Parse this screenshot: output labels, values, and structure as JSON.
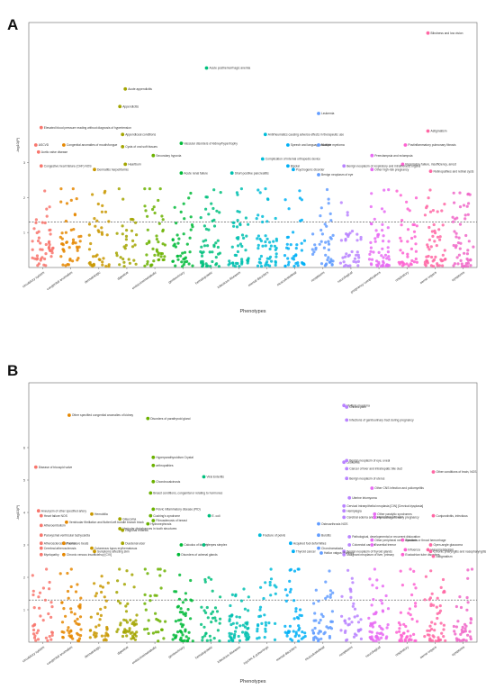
{
  "panels": [
    {
      "letter": "A"
    },
    {
      "letter": "B"
    }
  ],
  "chart_data": [
    {
      "type": "scatter",
      "ylabel": "-log10(P)",
      "xlabel": "Phenotypes",
      "ylim": [
        0,
        7
      ],
      "yticks": [
        1,
        2,
        3
      ],
      "threshold": 1.3,
      "grid": false,
      "categories": [
        "circulatory system",
        "congenital anomalies",
        "dermatologic",
        "digestive",
        "endocrine/metabolic",
        "genitourinary",
        "hematopoietic",
        "infectious diseases",
        "mental disorders",
        "musculoskeletal",
        "neoplasms",
        "neurological",
        "pregnancy complications",
        "respiratory",
        "sense organs",
        "symptoms"
      ],
      "colors": [
        "#f8766d",
        "#e58700",
        "#c99800",
        "#a3a500",
        "#6bb100",
        "#00ba38",
        "#00bf7d",
        "#00c0af",
        "#00bcd8",
        "#00b0f6",
        "#619cff",
        "#b983ff",
        "#e76bf3",
        "#fd61d1",
        "#ff67a4",
        "#f066c8"
      ],
      "points": [
        {
          "label": "Blindness and low vision",
          "cat": 14,
          "y": 6.7
        },
        {
          "label": "Acute posthemorrhagic anemia",
          "cat": 6,
          "y": 5.7
        },
        {
          "label": "Acute appendicitis",
          "cat": 3,
          "y": 5.1
        },
        {
          "label": "Appendicitis",
          "cat": 3,
          "y": 4.6
        },
        {
          "label": "Leukemia",
          "cat": 10,
          "y": 4.4
        },
        {
          "label": "Elevated blood pressure reading without diagnosis of hypertension",
          "cat": 0,
          "y": 4.0
        },
        {
          "label": "Astigmatism",
          "cat": 14,
          "y": 3.9
        },
        {
          "label": "Appendiceal conditions",
          "cat": 3,
          "y": 3.8
        },
        {
          "label": "Antirheumatics causing adverse effects in therapeutic use",
          "cat": 8,
          "y": 3.8
        },
        {
          "label": "Congenital anomalies of mouth/tongue",
          "cat": 1,
          "y": 3.5
        },
        {
          "label": "Cysts of oral soft tissues",
          "cat": 3,
          "y": 3.45
        },
        {
          "label": "Vascular disorders of kidney/hypertrophy",
          "cat": 5,
          "y": 3.55
        },
        {
          "label": "Speech and language disorder",
          "cat": 9,
          "y": 3.5
        },
        {
          "label": "Multiple myeloma",
          "cat": 10,
          "y": 3.5
        },
        {
          "label": "Postinflammatory pulmonary fibrosis",
          "cat": 13,
          "y": 3.5
        },
        {
          "label": "ASCVD",
          "cat": 0,
          "y": 3.5
        },
        {
          "label": "Aortic valve disease",
          "cat": 0,
          "y": 3.3
        },
        {
          "label": "Secondary hypoxia",
          "cat": 4,
          "y": 3.2
        },
        {
          "label": "Preeclampsia and eclampsia",
          "cat": 12,
          "y": 3.2
        },
        {
          "label": "Complication of internal orthopedic device",
          "cat": 8,
          "y": 3.1
        },
        {
          "label": "Heartburn",
          "cat": 3,
          "y": 2.95
        },
        {
          "label": "Bipolar",
          "cat": 9,
          "y": 2.9
        },
        {
          "label": "Respiratory failure, insufficiency, arrest",
          "cat": 13,
          "y": 2.95
        },
        {
          "label": "Congestive heart failure (CHF) NOS",
          "cat": 0,
          "y": 2.9
        },
        {
          "label": "Benign neoplasm of respiratory and intrathoracic organs",
          "cat": 11,
          "y": 2.9
        },
        {
          "label": "Dermatitis herpetiformis",
          "cat": 2,
          "y": 2.8
        },
        {
          "label": "Psychogenic disorder",
          "cat": 9,
          "y": 2.8
        },
        {
          "label": "Other high-risk pregnancy",
          "cat": 12,
          "y": 2.8
        },
        {
          "label": "Retinopathies and retinal cysts",
          "cat": 14,
          "y": 2.75
        },
        {
          "label": "Acute renal failure",
          "cat": 5,
          "y": 2.7
        },
        {
          "label": "Short-positive pancreatitis",
          "cat": 7,
          "y": 2.7
        },
        {
          "label": "Benign neoplasm of eye",
          "cat": 10,
          "y": 2.65
        }
      ]
    },
    {
      "type": "scatter",
      "ylabel": "-log10(P)",
      "xlabel": "Phenotypes",
      "ylim": [
        0,
        8
      ],
      "yticks": [
        1,
        2,
        3,
        4,
        5,
        6
      ],
      "threshold": 1.3,
      "grid": false,
      "categories": [
        "circulatory system",
        "congenital anomalies",
        "dermatologic",
        "digestive",
        "endocrine/metabolic",
        "genitourinary",
        "hematopoietic",
        "infectious diseases",
        "injuries & poisonings",
        "mental disorders",
        "musculoskeletal",
        "neoplasms",
        "neurological",
        "respiratory",
        "sense organs",
        "symptoms"
      ],
      "colors": [
        "#f8766d",
        "#e58700",
        "#c99800",
        "#a3a500",
        "#6bb100",
        "#00ba38",
        "#00bf7d",
        "#00c0af",
        "#00bcd8",
        "#00b0f6",
        "#619cff",
        "#b983ff",
        "#e76bf3",
        "#fd61d1",
        "#ff67a4",
        "#f066c8"
      ],
      "points": [
        {
          "label": "Multiple myeloma",
          "cat": 11,
          "y": 7.3
        },
        {
          "label": "Chronic pain",
          "cat": 11,
          "y": 7.25
        },
        {
          "label": "Other specified congenital anomalies of kidney",
          "cat": 1,
          "y": 7.0
        },
        {
          "label": "Disorders of parathyroid gland",
          "cat": 4,
          "y": 6.9
        },
        {
          "label": "Infections of genitourinary tract during pregnancy",
          "cat": 11,
          "y": 6.85
        },
        {
          "label": "Hyperparathyroidism Crystal",
          "cat": 4,
          "y": 5.7
        },
        {
          "label": "Leukemia",
          "cat": 11,
          "y": 5.55
        },
        {
          "label": "Benign neoplasm of eye, uveal",
          "cat": 11,
          "y": 5.6
        },
        {
          "label": "arthropathies",
          "cat": 4,
          "y": 5.45
        },
        {
          "label": "Disease of tricuspid valve",
          "cat": 0,
          "y": 5.4
        },
        {
          "label": "Cancer of liver and intrahepatic bile duct",
          "cat": 11,
          "y": 5.35
        },
        {
          "label": "Other conditions of brain, NOS",
          "cat": 14,
          "y": 5.25
        },
        {
          "label": "Viral Enteritis",
          "cat": 6,
          "y": 5.1
        },
        {
          "label": "Benign neoplasm of uterus",
          "cat": 11,
          "y": 5.05
        },
        {
          "label": "Chondrocalcinosis",
          "cat": 4,
          "y": 4.95
        },
        {
          "label": "Other CNS infection and poliomyelitis",
          "cat": 12,
          "y": 4.75
        },
        {
          "label": "Breast conditions, congenital or relating to hormones",
          "cat": 4,
          "y": 4.6
        },
        {
          "label": "Uterine leiomyoma",
          "cat": 11,
          "y": 4.45
        },
        {
          "label": "Cervical intraepithelial neoplasia [CIN] [Cervical dysplasia]",
          "cat": 11,
          "y": 4.2
        },
        {
          "label": "Aneurysm of other specified artery",
          "cat": 0,
          "y": 4.05
        },
        {
          "label": "Pelvic inflammatory disease (PID)",
          "cat": 4,
          "y": 4.1
        },
        {
          "label": "Hemiplegia",
          "cat": 11,
          "y": 4.05
        },
        {
          "label": "Other paralytic syndromes",
          "cat": 12,
          "y": 3.95
        },
        {
          "label": "Heart failure NOS",
          "cat": 0,
          "y": 3.9
        },
        {
          "label": "Hemobilia",
          "cat": 2,
          "y": 3.95
        },
        {
          "label": "Cushing's syndrome",
          "cat": 4,
          "y": 3.9
        },
        {
          "label": "E. coli",
          "cat": 6,
          "y": 3.9
        },
        {
          "label": "Cerebral edema and compression of brain",
          "cat": 11,
          "y": 3.85
        },
        {
          "label": "Hemorrhage in early pregnancy",
          "cat": 12,
          "y": 3.85
        },
        {
          "label": "Conjunctivitis, infectious",
          "cat": 14,
          "y": 3.9
        },
        {
          "label": "Glaucoma",
          "cat": 3,
          "y": 3.8
        },
        {
          "label": "Ventricular fibrillation and flutter/Left bundle branch block",
          "cat": 1,
          "y": 3.7
        },
        {
          "label": "Fibroadenosis of breast",
          "cat": 4,
          "y": 3.75
        },
        {
          "label": "Hydronephrosis",
          "cat": 4,
          "y": 3.65
        },
        {
          "label": "Osteoarthrosis NOS",
          "cat": 10,
          "y": 3.65
        },
        {
          "label": "Atheroembolism",
          "cat": 0,
          "y": 3.6
        },
        {
          "label": "Vesicular disturbances in tooth structures",
          "cat": 3,
          "y": 3.5
        },
        {
          "label": "Regional enteritis",
          "cat": 3,
          "y": 3.45
        },
        {
          "label": "Paroxysmal ventricular tachycardia",
          "cat": 0,
          "y": 3.3
        },
        {
          "label": "Fracture of pelvis",
          "cat": 8,
          "y": 3.3
        },
        {
          "label": "Bursitis",
          "cat": 10,
          "y": 3.3
        },
        {
          "label": "Pathological, developmental or recurrent dislocation",
          "cat": 11,
          "y": 3.25
        },
        {
          "label": "Other peripheral nerve disorders",
          "cat": 12,
          "y": 3.15
        },
        {
          "label": "Epistaxis or throat hemorrhage",
          "cat": 13,
          "y": 3.15
        },
        {
          "label": "Atherosclerosis of aorta",
          "cat": 0,
          "y": 3.05
        },
        {
          "label": "Premature beats",
          "cat": 1,
          "y": 3.05
        },
        {
          "label": "Duodenal ulcer",
          "cat": 3,
          "y": 3.05
        },
        {
          "label": "Calculus of kidney",
          "cat": 5,
          "y": 3.0
        },
        {
          "label": "Herpes simplex",
          "cat": 6,
          "y": 3.0
        },
        {
          "label": "Acquired foot deformities",
          "cat": 9,
          "y": 3.05
        },
        {
          "label": "Colorectal cancer",
          "cat": 11,
          "y": 3.0
        },
        {
          "label": "Essential tremor",
          "cat": 12,
          "y": 3.0
        },
        {
          "label": "Open-angle glaucoma",
          "cat": 14,
          "y": 3.0
        },
        {
          "label": "Cerebral atherosclerosis",
          "cat": 0,
          "y": 2.9
        },
        {
          "label": "Cutaneous lupus erythematosus",
          "cat": 2,
          "y": 2.9
        },
        {
          "label": "Chondromalacia",
          "cat": 10,
          "y": 2.9
        },
        {
          "label": "Influenza",
          "cat": 13,
          "y": 2.85
        },
        {
          "label": "Hypermetabolism",
          "cat": 14,
          "y": 2.85
        },
        {
          "label": "Symptoms affecting skin",
          "cat": 2,
          "y": 2.8
        },
        {
          "label": "Thyroid cancer",
          "cat": 9,
          "y": 2.8
        },
        {
          "label": "Benign neoplasm of thyroid glands",
          "cat": 11,
          "y": 2.8
        },
        {
          "label": "Chronic pharyngitis and nasopharyngitis",
          "cat": 14,
          "y": 2.8
        },
        {
          "label": "Myelopathy",
          "cat": 0,
          "y": 2.7
        },
        {
          "label": "Chronic venous insufficiency [CVI]",
          "cat": 1,
          "y": 2.7
        },
        {
          "label": "Disorders of adrenal glands",
          "cat": 5,
          "y": 2.7
        },
        {
          "label": "Hallux valgus (Bunion)",
          "cat": 10,
          "y": 2.75
        },
        {
          "label": "Malignant neoplasm of liver, primary",
          "cat": 11,
          "y": 2.7
        },
        {
          "label": "Eustachian tube disorders",
          "cat": 13,
          "y": 2.7
        },
        {
          "label": "Astigmatism",
          "cat": 14,
          "y": 2.65
        }
      ]
    }
  ]
}
